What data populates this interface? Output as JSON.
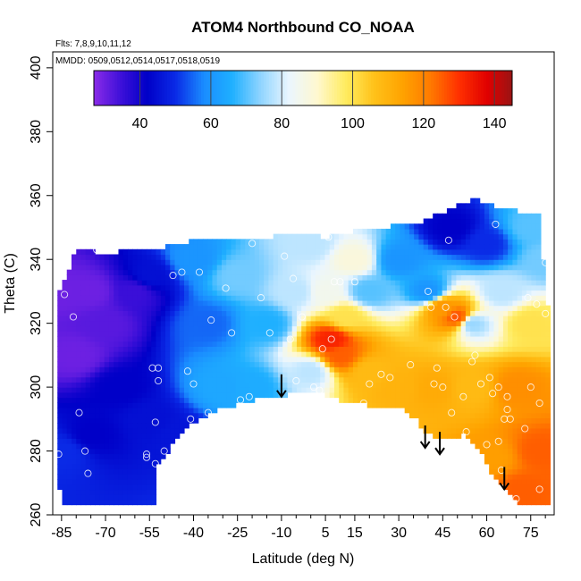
{
  "chart_data": {
    "type": "heatmap",
    "title": "ATOM4 Northbound CO_NOAA",
    "annotations": {
      "flights": "Flts: 7,8,9,10,11,12",
      "dates": "MMDD: 0509,0512,0514,0517,0518,0519"
    },
    "xlabel": "Latitude (deg N)",
    "ylabel": "Theta (C)",
    "xlim": [
      -88,
      83
    ],
    "ylim": [
      260,
      405
    ],
    "x_ticks": [
      -85,
      -70,
      -55,
      -40,
      -25,
      -10,
      5,
      15,
      30,
      45,
      60,
      75
    ],
    "x_tick_labels": [
      "-85",
      "-70",
      "-55",
      "-40",
      "-25",
      "-10",
      "5",
      "15",
      "30",
      "45",
      "60",
      "75"
    ],
    "y_ticks": [
      260,
      280,
      300,
      320,
      340,
      360,
      380,
      400
    ],
    "y_tick_labels": [
      "260",
      "280",
      "300",
      "320",
      "340",
      "360",
      "380",
      "400"
    ],
    "colorbar": {
      "range": [
        27,
        145
      ],
      "ticks": [
        40,
        60,
        80,
        100,
        120,
        140
      ],
      "tick_labels": [
        "40",
        "60",
        "80",
        "100",
        "120",
        "140"
      ],
      "stops": [
        {
          "v": 27,
          "color": "#8b2be8"
        },
        {
          "v": 35,
          "color": "#3a0fd8"
        },
        {
          "v": 42,
          "color": "#0000c8"
        },
        {
          "v": 50,
          "color": "#0a2ae6"
        },
        {
          "v": 58,
          "color": "#1a8cff"
        },
        {
          "v": 66,
          "color": "#1fb0ff"
        },
        {
          "v": 74,
          "color": "#8fd4ff"
        },
        {
          "v": 82,
          "color": "#eaf6ff"
        },
        {
          "v": 90,
          "color": "#fff8d0"
        },
        {
          "v": 98,
          "color": "#ffec60"
        },
        {
          "v": 106,
          "color": "#ffc21a"
        },
        {
          "v": 114,
          "color": "#ffa300"
        },
        {
          "v": 122,
          "color": "#ff7a00"
        },
        {
          "v": 130,
          "color": "#ff3000"
        },
        {
          "v": 138,
          "color": "#e00000"
        },
        {
          "v": 145,
          "color": "#9a1414"
        }
      ]
    },
    "field_bounds": {
      "top": [
        [
          -86,
          330
        ],
        [
          -82,
          338
        ],
        [
          -80,
          343
        ],
        [
          -70,
          342
        ],
        [
          -60,
          343
        ],
        [
          -50,
          344
        ],
        [
          -40,
          346
        ],
        [
          -28,
          346
        ],
        [
          -15,
          347
        ],
        [
          -5,
          348
        ],
        [
          5,
          347
        ],
        [
          15,
          349
        ],
        [
          25,
          350
        ],
        [
          38,
          352
        ],
        [
          48,
          356
        ],
        [
          56,
          359
        ],
        [
          65,
          356
        ],
        [
          72,
          355
        ],
        [
          78,
          355
        ],
        [
          80,
          330
        ],
        [
          82,
          318
        ]
      ],
      "bottom": [
        [
          82,
          264
        ],
        [
          70,
          264
        ],
        [
          67,
          268
        ],
        [
          62,
          272
        ],
        [
          58,
          280
        ],
        [
          52,
          285
        ],
        [
          46,
          284
        ],
        [
          40,
          285
        ],
        [
          36,
          290
        ],
        [
          30,
          294
        ],
        [
          22,
          294
        ],
        [
          10,
          296
        ],
        [
          3,
          298
        ],
        [
          -5,
          298
        ],
        [
          -12,
          297
        ],
        [
          -20,
          296
        ],
        [
          -32,
          293
        ],
        [
          -40,
          289
        ],
        [
          -45,
          285
        ],
        [
          -50,
          278
        ],
        [
          -53,
          275
        ],
        [
          -53,
          264
        ],
        [
          -84,
          264
        ],
        [
          -86,
          270
        ],
        [
          -87,
          280
        ]
      ]
    },
    "control_points": [
      {
        "lat": -85,
        "theta": 330,
        "v": 30
      },
      {
        "lat": -80,
        "theta": 310,
        "v": 30
      },
      {
        "lat": -75,
        "theta": 330,
        "v": 30
      },
      {
        "lat": -70,
        "theta": 320,
        "v": 32
      },
      {
        "lat": -84,
        "theta": 280,
        "v": 50
      },
      {
        "lat": -75,
        "theta": 285,
        "v": 42
      },
      {
        "lat": -65,
        "theta": 300,
        "v": 42
      },
      {
        "lat": -55,
        "theta": 290,
        "v": 45
      },
      {
        "lat": -45,
        "theta": 285,
        "v": 46
      },
      {
        "lat": -60,
        "theta": 330,
        "v": 35
      },
      {
        "lat": -55,
        "theta": 335,
        "v": 45
      },
      {
        "lat": -35,
        "theta": 320,
        "v": 55
      },
      {
        "lat": -30,
        "theta": 300,
        "v": 64
      },
      {
        "lat": -20,
        "theta": 300,
        "v": 65
      },
      {
        "lat": -40,
        "theta": 340,
        "v": 60
      },
      {
        "lat": -25,
        "theta": 335,
        "v": 72
      },
      {
        "lat": -15,
        "theta": 320,
        "v": 66
      },
      {
        "lat": -5,
        "theta": 330,
        "v": 78
      },
      {
        "lat": 0,
        "theta": 305,
        "v": 78
      },
      {
        "lat": 0,
        "theta": 345,
        "v": 78
      },
      {
        "lat": 5,
        "theta": 330,
        "v": 85
      },
      {
        "lat": 7,
        "theta": 315,
        "v": 132
      },
      {
        "lat": 10,
        "theta": 310,
        "v": 125
      },
      {
        "lat": 12,
        "theta": 322,
        "v": 100
      },
      {
        "lat": 15,
        "theta": 340,
        "v": 88
      },
      {
        "lat": 20,
        "theta": 330,
        "v": 70
      },
      {
        "lat": 20,
        "theta": 305,
        "v": 108
      },
      {
        "lat": 30,
        "theta": 300,
        "v": 110
      },
      {
        "lat": 30,
        "theta": 340,
        "v": 60
      },
      {
        "lat": 40,
        "theta": 330,
        "v": 60
      },
      {
        "lat": 42,
        "theta": 300,
        "v": 112
      },
      {
        "lat": 45,
        "theta": 325,
        "v": 116
      },
      {
        "lat": 50,
        "theta": 322,
        "v": 126
      },
      {
        "lat": 48,
        "theta": 350,
        "v": 42
      },
      {
        "lat": 55,
        "theta": 300,
        "v": 108
      },
      {
        "lat": 55,
        "theta": 320,
        "v": 75
      },
      {
        "lat": 60,
        "theta": 345,
        "v": 50
      },
      {
        "lat": 65,
        "theta": 330,
        "v": 78
      },
      {
        "lat": 70,
        "theta": 300,
        "v": 118
      },
      {
        "lat": 75,
        "theta": 320,
        "v": 100
      },
      {
        "lat": 78,
        "theta": 280,
        "v": 125
      },
      {
        "lat": 72,
        "theta": 268,
        "v": 125
      },
      {
        "lat": 62,
        "theta": 278,
        "v": 115
      },
      {
        "lat": 80,
        "theta": 340,
        "v": 72
      },
      {
        "lat": 75,
        "theta": 350,
        "v": 70
      }
    ],
    "sample_points": [
      [
        -86,
        279
      ],
      [
        -84,
        329
      ],
      [
        -81,
        322
      ],
      [
        -79,
        292
      ],
      [
        -77,
        280
      ],
      [
        -76,
        273
      ],
      [
        -73,
        343
      ],
      [
        -56,
        279
      ],
      [
        -56,
        278
      ],
      [
        -54,
        306
      ],
      [
        -53,
        289
      ],
      [
        -53,
        276
      ],
      [
        -52,
        302
      ],
      [
        -52,
        306
      ],
      [
        -50,
        280
      ],
      [
        -47,
        335
      ],
      [
        -44,
        336
      ],
      [
        -42,
        305
      ],
      [
        -41,
        290
      ],
      [
        -40,
        301
      ],
      [
        -38,
        336
      ],
      [
        -35,
        292
      ],
      [
        -34,
        321
      ],
      [
        -29,
        331
      ],
      [
        -27,
        317
      ],
      [
        -24,
        296
      ],
      [
        -21,
        297
      ],
      [
        -20,
        345
      ],
      [
        -17,
        328
      ],
      [
        -14,
        317
      ],
      [
        -9,
        341
      ],
      [
        -7,
        315
      ],
      [
        -6,
        334
      ],
      [
        -5,
        302
      ],
      [
        -3,
        322
      ],
      [
        1,
        300
      ],
      [
        3,
        299
      ],
      [
        4,
        312
      ],
      [
        6,
        347
      ],
      [
        7,
        315
      ],
      [
        8,
        333
      ],
      [
        10,
        333
      ],
      [
        15,
        333
      ],
      [
        18,
        295
      ],
      [
        20,
        301
      ],
      [
        24,
        304
      ],
      [
        27,
        303
      ],
      [
        34,
        307
      ],
      [
        40,
        330
      ],
      [
        41,
        325
      ],
      [
        42,
        301
      ],
      [
        43,
        306
      ],
      [
        45,
        300
      ],
      [
        46,
        325
      ],
      [
        47,
        346
      ],
      [
        48,
        292
      ],
      [
        49,
        322
      ],
      [
        52,
        297
      ],
      [
        53,
        286
      ],
      [
        55,
        308
      ],
      [
        56,
        310
      ],
      [
        58,
        301
      ],
      [
        60,
        282
      ],
      [
        61,
        303
      ],
      [
        62,
        298
      ],
      [
        63,
        351
      ],
      [
        64,
        300
      ],
      [
        64,
        283
      ],
      [
        65,
        274
      ],
      [
        66,
        290
      ],
      [
        67,
        293
      ],
      [
        67,
        297
      ],
      [
        68,
        290
      ],
      [
        70,
        265
      ],
      [
        73,
        287
      ],
      [
        74,
        328
      ],
      [
        75,
        300
      ],
      [
        77,
        326
      ],
      [
        78,
        268
      ],
      [
        78,
        295
      ],
      [
        80,
        323
      ],
      [
        80,
        339
      ]
    ],
    "arrows": [
      {
        "lat": -10,
        "theta_top": 304,
        "theta_tip": 297
      },
      {
        "lat": 39,
        "theta_top": 288,
        "theta_tip": 281
      },
      {
        "lat": 44,
        "theta_top": 286,
        "theta_tip": 279
      },
      {
        "lat": 66,
        "theta_top": 275,
        "theta_tip": 268
      }
    ]
  }
}
